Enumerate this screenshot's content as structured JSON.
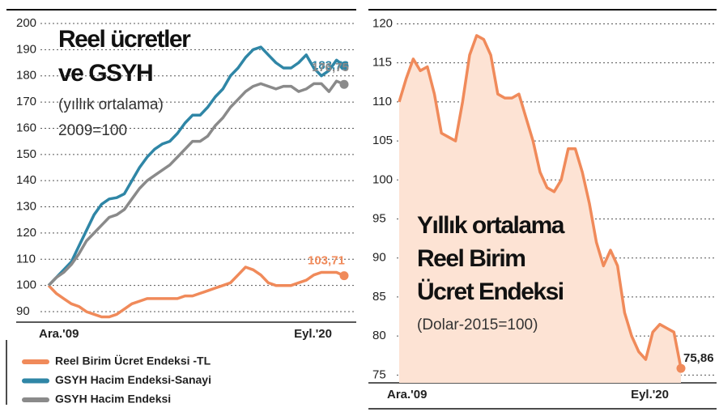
{
  "chart_data": [
    {
      "type": "line",
      "title_lines": [
        "Reel ücretler",
        "ve GSYH"
      ],
      "subtitle_lines": [
        "(yıllık ortalama)",
        "2009=100"
      ],
      "categories": [
        "Ara.'09",
        null,
        null,
        null,
        null,
        null,
        null,
        null,
        null,
        null,
        null,
        null,
        null,
        null,
        null,
        null,
        null,
        null,
        null,
        null,
        null,
        null,
        null,
        null,
        null,
        null,
        null,
        null,
        null,
        null,
        null,
        null,
        null,
        null,
        null,
        null,
        null,
        null,
        null,
        "Eyl.'20"
      ],
      "ylim": [
        86,
        204
      ],
      "yticks": [
        90,
        100,
        110,
        120,
        130,
        140,
        150,
        160,
        170,
        180,
        190,
        200
      ],
      "grid": true,
      "legend": "bottom",
      "series": [
        {
          "name": "Reel Birim Ücret Endeksi -TL",
          "color": "#f08a5a",
          "values": [
            100,
            97,
            95,
            93,
            92,
            90,
            89,
            88,
            88,
            89,
            91,
            93,
            94,
            95,
            95,
            95,
            95,
            95,
            96,
            96,
            97,
            98,
            99,
            100,
            101,
            104,
            107,
            106,
            104,
            101,
            100,
            100,
            100,
            101,
            102,
            104,
            105,
            105,
            105,
            103.71
          ],
          "value_labels": [
            null,
            null,
            null,
            null,
            null,
            null,
            null,
            null,
            null,
            null,
            null,
            null,
            null,
            null,
            null,
            null,
            null,
            null,
            null,
            null,
            null,
            null,
            null,
            null,
            null,
            null,
            null,
            null,
            null,
            null,
            null,
            null,
            null,
            null,
            null,
            null,
            null,
            null,
            null,
            "103,71"
          ]
        },
        {
          "name": "GSYH Hacim Endeksi-Sanayi",
          "color": "#2f86a6",
          "values": [
            100,
            103,
            106,
            109,
            115,
            121,
            127,
            131,
            133,
            133.5,
            135,
            140,
            145,
            149,
            152,
            154,
            155,
            158,
            162,
            165,
            165,
            168,
            172,
            175,
            180,
            183,
            187,
            190,
            191,
            188,
            185,
            183,
            183,
            185,
            188,
            183,
            180,
            182,
            186,
            183.78
          ],
          "value_labels": [
            null,
            null,
            null,
            null,
            null,
            null,
            null,
            null,
            null,
            null,
            null,
            null,
            null,
            null,
            null,
            null,
            null,
            null,
            null,
            null,
            null,
            null,
            null,
            null,
            null,
            null,
            null,
            null,
            null,
            null,
            null,
            null,
            null,
            null,
            null,
            null,
            null,
            null,
            null,
            "183,78"
          ]
        },
        {
          "name": "GSYH Hacim Endeksi",
          "color": "#8a8a8a",
          "values": [
            100,
            103,
            105,
            108,
            112,
            117,
            120,
            123,
            126,
            127,
            129,
            133,
            137,
            140,
            142,
            144,
            146,
            149,
            152,
            155,
            155,
            157,
            161,
            164,
            168,
            171,
            174,
            176,
            177,
            176,
            175,
            176,
            176,
            174,
            175,
            177,
            177,
            174,
            178,
            176.75
          ],
          "value_labels": [
            null,
            null,
            null,
            null,
            null,
            null,
            null,
            null,
            null,
            null,
            null,
            null,
            null,
            null,
            null,
            null,
            null,
            null,
            null,
            null,
            null,
            null,
            null,
            null,
            null,
            null,
            null,
            null,
            null,
            null,
            null,
            null,
            null,
            null,
            null,
            null,
            null,
            null,
            null,
            "176,75"
          ]
        }
      ]
    },
    {
      "type": "area",
      "title_lines": [
        "Yıllık ortalama",
        "Reel Birim",
        "Ücret Endeksi"
      ],
      "subtitle_lines": [
        "(Dolar-2015=100)"
      ],
      "categories": [
        "Ara.'09",
        null,
        null,
        null,
        null,
        null,
        null,
        null,
        null,
        null,
        null,
        null,
        null,
        null,
        null,
        null,
        null,
        null,
        null,
        null,
        null,
        null,
        null,
        null,
        null,
        null,
        null,
        null,
        null,
        null,
        null,
        null,
        null,
        null,
        null,
        null,
        null,
        null,
        null,
        null,
        "Eyl.'20"
      ],
      "ylim": [
        74,
        121.5
      ],
      "yticks": [
        75,
        80,
        85,
        90,
        95,
        100,
        105,
        110,
        115,
        120
      ],
      "grid": true,
      "series": [
        {
          "color": "#f08a5a",
          "fill": "#fde3d4",
          "values": [
            110,
            113,
            115.5,
            114,
            114.5,
            111,
            106,
            105.5,
            105,
            110,
            116,
            118.5,
            118,
            116,
            111,
            110.5,
            110.5,
            111,
            108,
            105,
            101,
            99,
            98.5,
            100,
            104,
            104,
            101,
            97,
            92,
            89,
            91,
            89,
            83,
            80,
            78,
            77,
            80.5,
            81.5,
            81,
            80.5,
            75.86
          ],
          "value_labels": [
            null,
            null,
            null,
            null,
            null,
            null,
            null,
            null,
            null,
            null,
            null,
            null,
            null,
            null,
            null,
            null,
            null,
            null,
            null,
            null,
            null,
            null,
            null,
            null,
            null,
            null,
            null,
            null,
            null,
            null,
            null,
            null,
            null,
            null,
            null,
            null,
            null,
            null,
            null,
            null,
            "75,86"
          ]
        }
      ]
    }
  ]
}
